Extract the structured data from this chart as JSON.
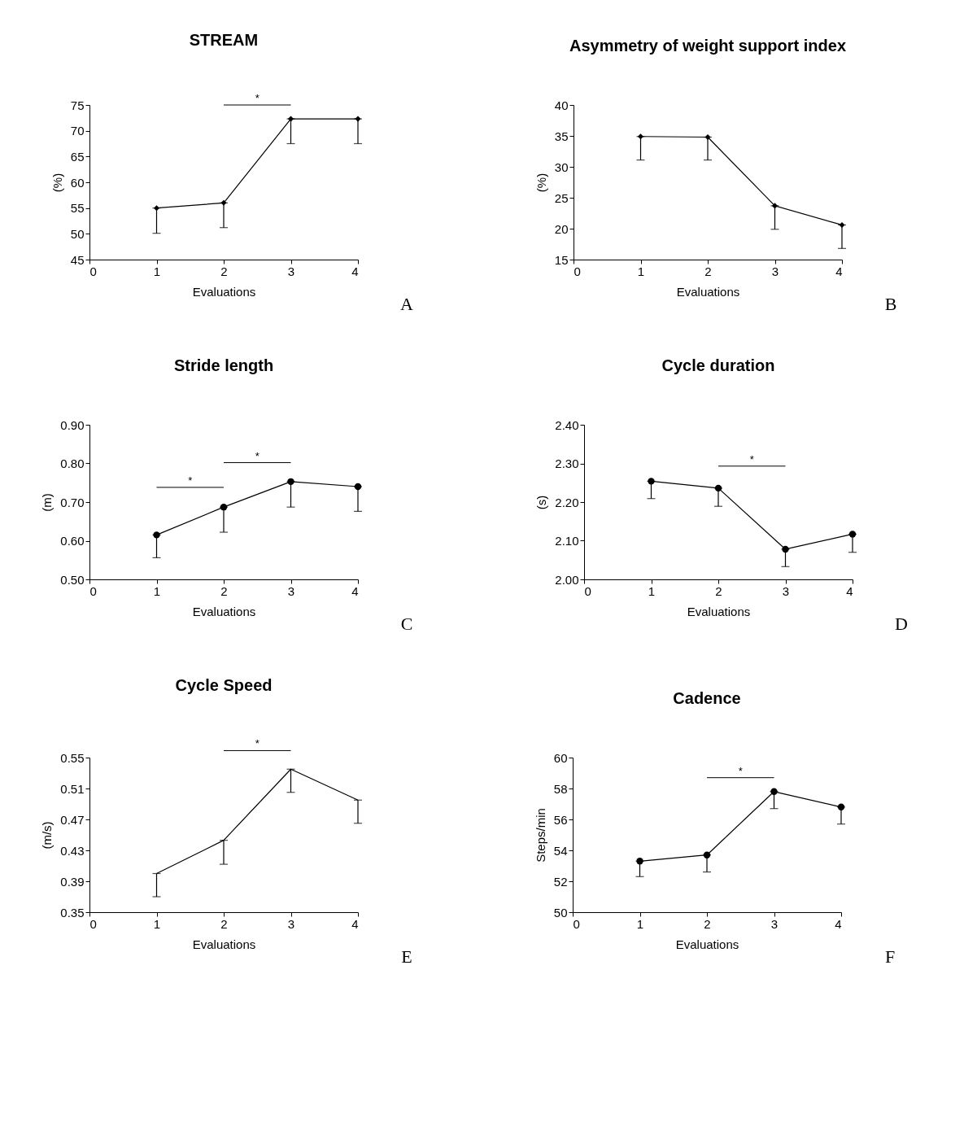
{
  "chart_data": [
    {
      "type": "line",
      "title": "STREAM",
      "xlabel": "Evaluations",
      "ylabel": "(%)",
      "x": [
        1,
        2,
        3,
        4
      ],
      "xlim": [
        0,
        4
      ],
      "xticks": [
        0,
        1,
        2,
        3,
        4
      ],
      "ylim": [
        45,
        75
      ],
      "yticks": [
        45,
        50,
        55,
        60,
        65,
        70,
        75
      ],
      "marker": "diamond",
      "series": [
        {
          "color": "#000000",
          "values": [
            55,
            56,
            72.3,
            72.3
          ],
          "errors": [
            [
              50.1,
              55
            ],
            [
              51.2,
              56
            ],
            [
              67.5,
              72.3
            ],
            [
              67.5,
              72.3
            ]
          ]
        }
      ],
      "annotations": [
        "*",
        "A"
      ]
    },
    {
      "type": "line",
      "title": "Asymmetry of weight support index",
      "xlabel": "Evaluations",
      "ylabel": "(%)",
      "x": [
        1,
        2,
        3,
        4
      ],
      "xlim": [
        0,
        4
      ],
      "xticks": [
        0,
        1,
        2,
        3,
        4
      ],
      "ylim": [
        15,
        40
      ],
      "yticks": [
        15,
        20,
        25,
        30,
        35,
        40
      ],
      "marker": "diamond",
      "series": [
        {
          "color": "#000000",
          "values": [
            34.9,
            34.8,
            23.7,
            20.6
          ],
          "errors": [
            [
              31.1,
              34.9
            ],
            [
              31.1,
              34.8
            ],
            [
              19.9,
              23.7
            ],
            [
              16.8,
              20.6
            ]
          ]
        }
      ],
      "annotations": [
        "B"
      ]
    },
    {
      "type": "line",
      "title": "Stride length",
      "xlabel": "Evaluations",
      "ylabel": "(m)",
      "x": [
        1,
        2,
        3,
        4
      ],
      "xlim": [
        0,
        4
      ],
      "xticks": [
        0,
        1,
        2,
        3,
        4
      ],
      "ylim": [
        0.5,
        0.9
      ],
      "yticks": [
        {
          "value": 0.5,
          "label": "0.50"
        },
        {
          "value": 0.6,
          "label": "0.60"
        },
        {
          "value": 0.7,
          "label": "0.70"
        },
        {
          "value": 0.8,
          "label": "0.80"
        },
        {
          "value": 0.9,
          "label": "0.90"
        }
      ],
      "marker": "circle",
      "series": [
        {
          "color": "#000000",
          "values": [
            0.615,
            0.687,
            0.753,
            0.74
          ],
          "errors": [
            [
              0.556,
              0.615
            ],
            [
              0.622,
              0.687
            ],
            [
              0.687,
              0.753
            ],
            [
              0.676,
              0.74
            ]
          ]
        }
      ],
      "annotations": [
        "*",
        "*",
        "C"
      ]
    },
    {
      "type": "line",
      "title": "Cycle duration",
      "xlabel": "Evaluations",
      "ylabel": "(s)",
      "x": [
        1,
        2,
        3,
        4
      ],
      "xlim": [
        0,
        4
      ],
      "xticks": [
        0,
        1,
        2,
        3,
        4
      ],
      "ylim": [
        2.0,
        2.4
      ],
      "yticks": [
        {
          "value": 2.0,
          "label": "2.00"
        },
        {
          "value": 2.1,
          "label": "2.10"
        },
        {
          "value": 2.2,
          "label": "2.20"
        },
        {
          "value": 2.3,
          "label": "2.30"
        },
        {
          "value": 2.4,
          "label": "2.40"
        }
      ],
      "marker": "circle",
      "series": [
        {
          "color": "#000000",
          "values": [
            2.254,
            2.236,
            2.078,
            2.117
          ],
          "errors": [
            [
              2.209,
              2.254
            ],
            [
              2.189,
              2.236
            ],
            [
              2.033,
              2.078
            ],
            [
              2.07,
              2.117
            ]
          ]
        }
      ],
      "annotations": [
        "*",
        "D"
      ]
    },
    {
      "type": "line",
      "title": "Cycle Speed",
      "xlabel": "Evaluations",
      "ylabel": "(m/s)",
      "x": [
        1,
        2,
        3,
        4
      ],
      "xlim": [
        0,
        4
      ],
      "xticks": [
        0,
        1,
        2,
        3,
        4
      ],
      "ylim": [
        0.35,
        0.55
      ],
      "yticks": [
        0.35,
        0.39,
        0.43,
        0.47,
        0.51,
        0.55
      ],
      "marker": "none",
      "series": [
        {
          "color": "#000000",
          "values": [
            0.4,
            0.443,
            0.535,
            0.495
          ],
          "errors": [
            [
              0.37,
              0.4
            ],
            [
              0.412,
              0.443
            ],
            [
              0.505,
              0.535
            ],
            [
              0.465,
              0.495
            ]
          ]
        }
      ],
      "annotations": [
        "*",
        "E"
      ]
    },
    {
      "type": "line",
      "title": "Cadence",
      "xlabel": "Evaluations",
      "ylabel": "Steps/min",
      "x": [
        1,
        2,
        3,
        4
      ],
      "xlim": [
        0,
        4
      ],
      "xticks": [
        0,
        1,
        2,
        3,
        4
      ],
      "ylim": [
        50,
        60
      ],
      "yticks": [
        50,
        52,
        54,
        56,
        58,
        60
      ],
      "marker": "circle",
      "series": [
        {
          "color": "#000000",
          "values": [
            53.3,
            53.7,
            57.8,
            56.8
          ],
          "errors": [
            [
              52.3,
              53.3
            ],
            [
              52.6,
              53.7
            ],
            [
              56.7,
              57.8
            ],
            [
              55.7,
              56.8
            ]
          ]
        }
      ],
      "annotations": [
        "*",
        "F"
      ]
    }
  ]
}
